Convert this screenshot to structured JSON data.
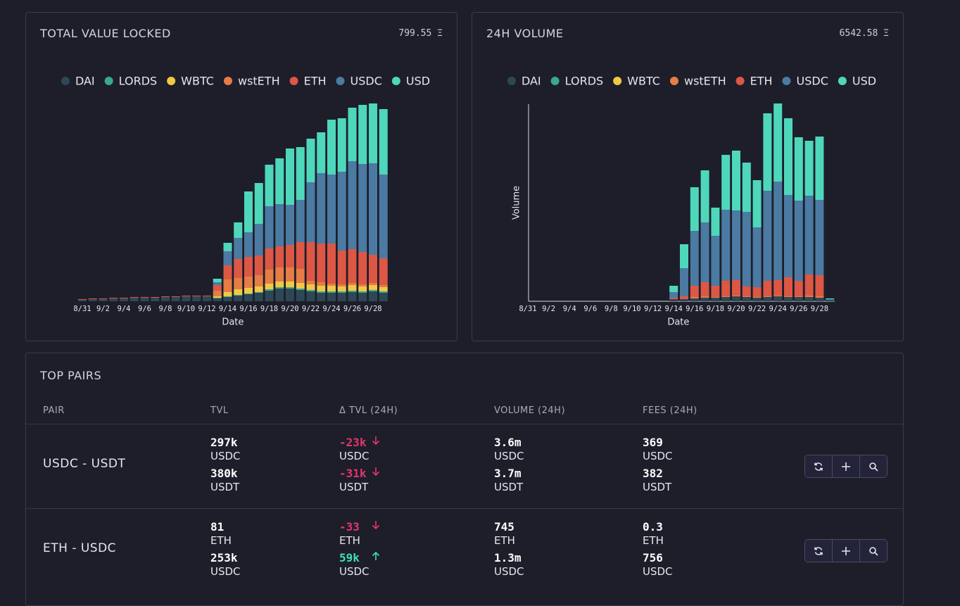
{
  "chart_data": [
    {
      "type": "stacked-bar",
      "title": "TOTAL VALUE LOCKED",
      "summary": "799.55 Ξ",
      "x_label": "Date",
      "categories": [
        "8/31",
        null,
        "9/2",
        null,
        "9/4",
        null,
        "9/6",
        null,
        "9/8",
        null,
        "9/10",
        null,
        "9/12",
        null,
        "9/14",
        null,
        "9/16",
        null,
        "9/18",
        null,
        "9/20",
        null,
        "9/22",
        null,
        "9/24",
        null,
        "9/26",
        null,
        "9/28",
        null
      ],
      "ylim": [
        0,
        300
      ],
      "axis_lines": false,
      "series": [
        {
          "name": "DAI",
          "color": "#2e4756",
          "values": [
            2,
            3,
            3,
            4,
            4,
            5,
            5,
            5,
            6,
            6,
            7,
            7,
            7,
            4,
            6,
            8,
            10,
            12,
            15,
            18,
            18,
            16,
            14,
            12,
            12,
            12,
            13,
            12,
            14,
            12
          ]
        },
        {
          "name": "LORDS",
          "color": "#3aa88e",
          "values": [
            0,
            0,
            0,
            0,
            0,
            0,
            0,
            0,
            0,
            0,
            0,
            0,
            0,
            1,
            1,
            1,
            1,
            1,
            2,
            2,
            2,
            2,
            2,
            2,
            2,
            2,
            2,
            2,
            2,
            2
          ]
        },
        {
          "name": "WBTC",
          "color": "#f0c845",
          "values": [
            0,
            0,
            0,
            0,
            0,
            0,
            0,
            0,
            0,
            0,
            0,
            0,
            0,
            2,
            6,
            8,
            8,
            8,
            8,
            8,
            8,
            8,
            8,
            8,
            8,
            7,
            8,
            7,
            7,
            6
          ]
        },
        {
          "name": "wstETH",
          "color": "#e57d45",
          "values": [
            0,
            0,
            0,
            0,
            0,
            0,
            0,
            0,
            0,
            0,
            0,
            0,
            0,
            8,
            18,
            16,
            16,
            16,
            20,
            20,
            20,
            20,
            5,
            5,
            3,
            3,
            3,
            3,
            3,
            3
          ]
        },
        {
          "name": "ETH",
          "color": "#dd5745",
          "values": [
            1,
            1,
            1,
            1,
            1,
            1,
            1,
            1,
            1,
            1,
            1,
            1,
            1,
            8,
            20,
            27,
            28,
            28,
            30,
            30,
            32,
            38,
            55,
            55,
            57,
            48,
            48,
            46,
            40,
            38
          ]
        },
        {
          "name": "USDC",
          "color": "#4b7aa3",
          "values": [
            0,
            0,
            0,
            0,
            0,
            0,
            0,
            0,
            0,
            0,
            0,
            0,
            0,
            4,
            20,
            30,
            35,
            45,
            60,
            60,
            57,
            60,
            85,
            100,
            98,
            112,
            125,
            125,
            130,
            119
          ]
        },
        {
          "name": "USD",
          "color": "#4ed7bb",
          "values": [
            0,
            0,
            0,
            0,
            0,
            0,
            0,
            0,
            0,
            0,
            0,
            0,
            0,
            5,
            12,
            22,
            58,
            58,
            59,
            65,
            80,
            75,
            62,
            58,
            78,
            76,
            76,
            84,
            85,
            93
          ]
        }
      ]
    },
    {
      "type": "stacked-bar",
      "title": "24H VOLUME",
      "summary": "6542.58 Ξ",
      "x_label": "Date",
      "y_label": "Volume",
      "categories": [
        "8/31",
        null,
        "9/2",
        null,
        "9/4",
        null,
        "9/6",
        null,
        "9/8",
        null,
        "9/10",
        null,
        "9/12",
        null,
        "9/14",
        null,
        "9/16",
        null,
        "9/18",
        null,
        "9/20",
        null,
        "9/22",
        null,
        "9/24",
        null,
        "9/26",
        null,
        "9/28",
        null
      ],
      "ylim": [
        0,
        300
      ],
      "axis_lines": true,
      "series": [
        {
          "name": "DAI",
          "color": "#2e4756",
          "values": [
            0,
            0,
            0,
            0,
            0,
            0,
            0,
            0,
            0,
            0,
            0,
            0,
            0,
            0,
            3,
            3,
            4,
            5,
            5,
            6,
            7,
            6,
            5,
            6,
            7,
            6,
            6,
            6,
            5,
            2
          ]
        },
        {
          "name": "LORDS",
          "color": "#3aa88e",
          "values": [
            0,
            0,
            0,
            0,
            0,
            0,
            0,
            0,
            0,
            0,
            0,
            0,
            0,
            0,
            0,
            0,
            0,
            0,
            0,
            0,
            0,
            0,
            0,
            0,
            0,
            0,
            0,
            0,
            0,
            0
          ]
        },
        {
          "name": "WBTC",
          "color": "#f0c845",
          "values": [
            0,
            0,
            0,
            0,
            0,
            0,
            0,
            0,
            0,
            0,
            0,
            0,
            0,
            0,
            0,
            0,
            0,
            0,
            0,
            0,
            0,
            0,
            0,
            0,
            0,
            0,
            0,
            0,
            0,
            0
          ]
        },
        {
          "name": "wstETH",
          "color": "#e57d45",
          "values": [
            0,
            0,
            0,
            0,
            0,
            0,
            0,
            0,
            0,
            0,
            0,
            0,
            0,
            0,
            0,
            0,
            2,
            2,
            1,
            1,
            1,
            1,
            1,
            1,
            1,
            1,
            1,
            2,
            2,
            0
          ]
        },
        {
          "name": "ETH",
          "color": "#dd5745",
          "values": [
            0,
            0,
            0,
            0,
            0,
            0,
            0,
            0,
            0,
            0,
            0,
            0,
            0,
            0,
            2,
            4,
            16,
            20,
            16,
            22,
            22,
            14,
            14,
            22,
            22,
            27,
            22,
            30,
            30,
            0
          ]
        },
        {
          "name": "USDC",
          "color": "#4b7aa3",
          "values": [
            0,
            0,
            0,
            0,
            0,
            0,
            0,
            0,
            0,
            0,
            0,
            0,
            0,
            0,
            8,
            40,
            78,
            85,
            71,
            101,
            99,
            106,
            85,
            128,
            140,
            117,
            114,
            112,
            107,
            1
          ]
        },
        {
          "name": "USD",
          "color": "#4ed7bb",
          "values": [
            0,
            0,
            0,
            0,
            0,
            0,
            0,
            0,
            0,
            0,
            0,
            0,
            0,
            0,
            9,
            34,
            62,
            74,
            40,
            78,
            85,
            70,
            67,
            110,
            111,
            109,
            90,
            78,
            90,
            1
          ]
        }
      ]
    }
  ],
  "table": {
    "title": "TOP PAIRS",
    "columns": [
      "PAIR",
      "TVL",
      "Δ TVL (24H)",
      "VOLUME (24H)",
      "FEES (24H)"
    ],
    "rows": [
      {
        "pair": "USDC - USDT",
        "tvl": [
          {
            "amount": "297k",
            "token": "USDC"
          },
          {
            "amount": "380k",
            "token": "USDT"
          }
        ],
        "delta": [
          {
            "amount": "-23k",
            "token": "USDC",
            "trend": "down"
          },
          {
            "amount": "-31k",
            "token": "USDT",
            "trend": "down"
          }
        ],
        "volume": [
          {
            "amount": "3.6m",
            "token": "USDC"
          },
          {
            "amount": "3.7m",
            "token": "USDT"
          }
        ],
        "fees": [
          {
            "amount": "369",
            "token": "USDC"
          },
          {
            "amount": "382",
            "token": "USDT"
          }
        ]
      },
      {
        "pair": "ETH - USDC",
        "tvl": [
          {
            "amount": "81",
            "token": "ETH"
          },
          {
            "amount": "253k",
            "token": "USDC"
          }
        ],
        "delta": [
          {
            "amount": "-33",
            "token": "ETH",
            "trend": "down"
          },
          {
            "amount": "59k",
            "token": "USDC",
            "trend": "up"
          }
        ],
        "volume": [
          {
            "amount": "745",
            "token": "ETH"
          },
          {
            "amount": "1.3m",
            "token": "USDC"
          }
        ],
        "fees": [
          {
            "amount": "0.3",
            "token": "ETH"
          },
          {
            "amount": "756",
            "token": "USDC"
          }
        ]
      }
    ]
  }
}
